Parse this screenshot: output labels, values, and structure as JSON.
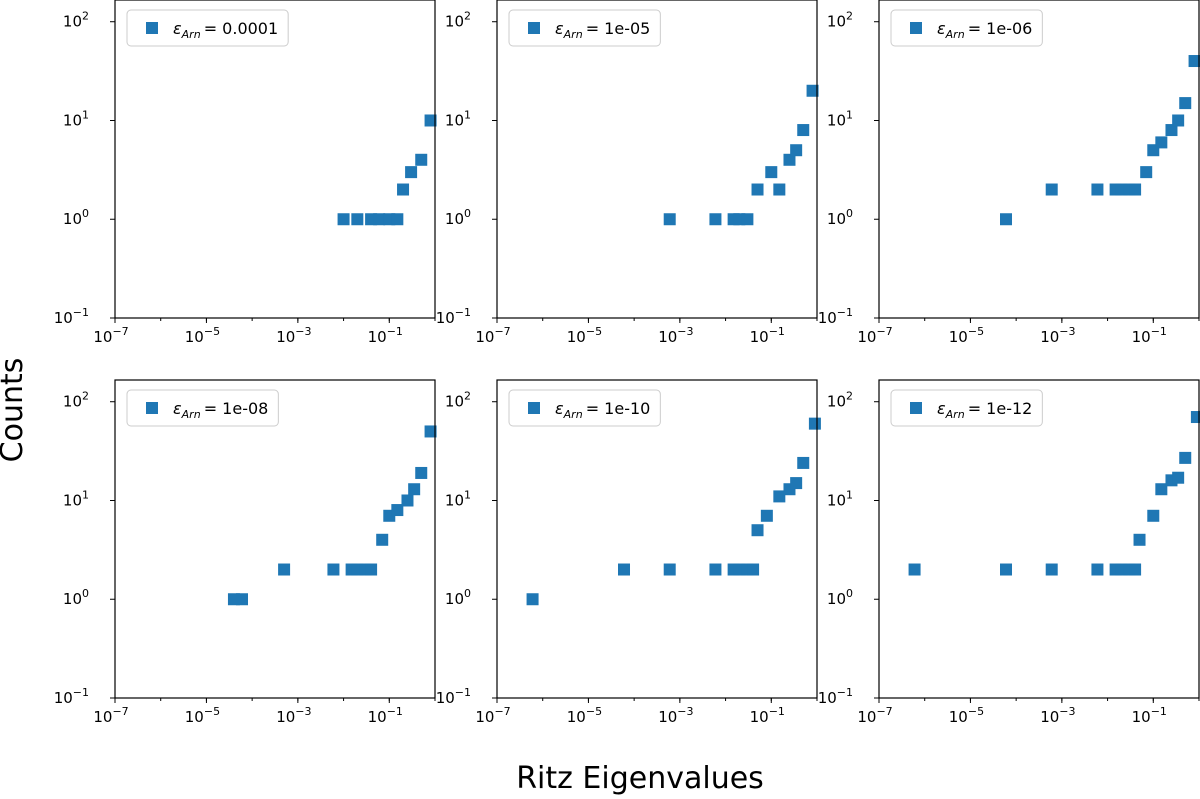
{
  "figure": {
    "ylabel": "Counts",
    "xlabel": "Ritz Eigenvalues"
  },
  "colors": {
    "marker": "#1f77b4",
    "axis": "#000000",
    "legend_border": "#cccccc"
  },
  "chart_data": [
    {
      "type": "scatter",
      "xscale": "log",
      "yscale": "log",
      "xlim": [
        1e-07,
        1
      ],
      "ylim": [
        0.1,
        100
      ],
      "xticks": [
        "10^-7",
        "10^-5",
        "10^-3",
        "10^-1"
      ],
      "yticks": [
        "10^-1",
        "10^0",
        "10^1",
        "10^2"
      ],
      "legend": {
        "symbol": "ε",
        "subscript": "Arn",
        "value": "= 0.0001",
        "location": "upper-left"
      },
      "points": [
        {
          "x": 0.01,
          "y": 1
        },
        {
          "x": 0.02,
          "y": 1
        },
        {
          "x": 0.04,
          "y": 1
        },
        {
          "x": 0.06,
          "y": 1
        },
        {
          "x": 0.1,
          "y": 1
        },
        {
          "x": 0.15,
          "y": 1
        },
        {
          "x": 0.2,
          "y": 2
        },
        {
          "x": 0.3,
          "y": 3
        },
        {
          "x": 0.5,
          "y": 4
        },
        {
          "x": 0.8,
          "y": 10
        }
      ]
    },
    {
      "type": "scatter",
      "xscale": "log",
      "yscale": "log",
      "xlim": [
        1e-07,
        1
      ],
      "ylim": [
        0.1,
        100
      ],
      "xticks": [
        "10^-7",
        "10^-5",
        "10^-3",
        "10^-1"
      ],
      "yticks": [
        "10^-1",
        "10^0",
        "10^1",
        "10^2"
      ],
      "legend": {
        "symbol": "ε",
        "subscript": "Arn",
        "value": "= 1e-05",
        "location": "upper-left"
      },
      "points": [
        {
          "x": 0.0006,
          "y": 1
        },
        {
          "x": 0.006,
          "y": 1
        },
        {
          "x": 0.015,
          "y": 1
        },
        {
          "x": 0.02,
          "y": 1
        },
        {
          "x": 0.03,
          "y": 1
        },
        {
          "x": 0.05,
          "y": 2
        },
        {
          "x": 0.1,
          "y": 3
        },
        {
          "x": 0.15,
          "y": 2
        },
        {
          "x": 0.25,
          "y": 4
        },
        {
          "x": 0.35,
          "y": 5
        },
        {
          "x": 0.5,
          "y": 8
        },
        {
          "x": 0.8,
          "y": 20
        }
      ]
    },
    {
      "type": "scatter",
      "xscale": "log",
      "yscale": "log",
      "xlim": [
        1e-07,
        1
      ],
      "ylim": [
        0.1,
        100
      ],
      "xticks": [
        "10^-7",
        "10^-5",
        "10^-3",
        "10^-1"
      ],
      "yticks": [
        "10^-1",
        "10^0",
        "10^1",
        "10^2"
      ],
      "legend": {
        "symbol": "ε",
        "subscript": "Arn",
        "value": "= 1e-06",
        "location": "upper-left"
      },
      "points": [
        {
          "x": 6e-05,
          "y": 1
        },
        {
          "x": 0.0006,
          "y": 2
        },
        {
          "x": 0.006,
          "y": 2
        },
        {
          "x": 0.015,
          "y": 2
        },
        {
          "x": 0.02,
          "y": 2
        },
        {
          "x": 0.03,
          "y": 2
        },
        {
          "x": 0.04,
          "y": 2
        },
        {
          "x": 0.07,
          "y": 3
        },
        {
          "x": 0.1,
          "y": 5
        },
        {
          "x": 0.15,
          "y": 6
        },
        {
          "x": 0.25,
          "y": 8
        },
        {
          "x": 0.35,
          "y": 10
        },
        {
          "x": 0.5,
          "y": 15
        },
        {
          "x": 0.8,
          "y": 40
        }
      ]
    },
    {
      "type": "scatter",
      "xscale": "log",
      "yscale": "log",
      "xlim": [
        1e-07,
        1
      ],
      "ylim": [
        0.1,
        100
      ],
      "xticks": [
        "10^-7",
        "10^-5",
        "10^-3",
        "10^-1"
      ],
      "yticks": [
        "10^-1",
        "10^0",
        "10^1",
        "10^2"
      ],
      "legend": {
        "symbol": "ε",
        "subscript": "Arn",
        "value": "= 1e-08",
        "location": "upper-left"
      },
      "points": [
        {
          "x": 4e-05,
          "y": 1
        },
        {
          "x": 6e-05,
          "y": 1
        },
        {
          "x": 0.0005,
          "y": 2
        },
        {
          "x": 0.006,
          "y": 2
        },
        {
          "x": 0.015,
          "y": 2
        },
        {
          "x": 0.02,
          "y": 2
        },
        {
          "x": 0.03,
          "y": 2
        },
        {
          "x": 0.04,
          "y": 2
        },
        {
          "x": 0.07,
          "y": 4
        },
        {
          "x": 0.1,
          "y": 7
        },
        {
          "x": 0.15,
          "y": 8
        },
        {
          "x": 0.25,
          "y": 10
        },
        {
          "x": 0.35,
          "y": 13
        },
        {
          "x": 0.5,
          "y": 19
        },
        {
          "x": 0.8,
          "y": 50
        }
      ]
    },
    {
      "type": "scatter",
      "xscale": "log",
      "yscale": "log",
      "xlim": [
        1e-07,
        1
      ],
      "ylim": [
        0.1,
        100
      ],
      "xticks": [
        "10^-7",
        "10^-5",
        "10^-3",
        "10^-1"
      ],
      "yticks": [
        "10^-1",
        "10^0",
        "10^1",
        "10^2"
      ],
      "legend": {
        "symbol": "ε",
        "subscript": "Arn",
        "value": "= 1e-10",
        "location": "upper-left"
      },
      "points": [
        {
          "x": 6e-07,
          "y": 1
        },
        {
          "x": 6e-05,
          "y": 2
        },
        {
          "x": 0.0006,
          "y": 2
        },
        {
          "x": 0.006,
          "y": 2
        },
        {
          "x": 0.015,
          "y": 2
        },
        {
          "x": 0.02,
          "y": 2
        },
        {
          "x": 0.03,
          "y": 2
        },
        {
          "x": 0.04,
          "y": 2
        },
        {
          "x": 0.05,
          "y": 5
        },
        {
          "x": 0.08,
          "y": 7
        },
        {
          "x": 0.15,
          "y": 11
        },
        {
          "x": 0.25,
          "y": 13
        },
        {
          "x": 0.35,
          "y": 15
        },
        {
          "x": 0.5,
          "y": 24
        },
        {
          "x": 0.9,
          "y": 60
        }
      ]
    },
    {
      "type": "scatter",
      "xscale": "log",
      "yscale": "log",
      "xlim": [
        1e-07,
        1
      ],
      "ylim": [
        0.1,
        100
      ],
      "xticks": [
        "10^-7",
        "10^-5",
        "10^-3",
        "10^-1"
      ],
      "yticks": [
        "10^-1",
        "10^0",
        "10^1",
        "10^2"
      ],
      "legend": {
        "symbol": "ε",
        "subscript": "Arn",
        "value": "= 1e-12",
        "location": "upper-left"
      },
      "points": [
        {
          "x": 6e-07,
          "y": 2
        },
        {
          "x": 6e-05,
          "y": 2
        },
        {
          "x": 0.0006,
          "y": 2
        },
        {
          "x": 0.006,
          "y": 2
        },
        {
          "x": 0.015,
          "y": 2
        },
        {
          "x": 0.02,
          "y": 2
        },
        {
          "x": 0.03,
          "y": 2
        },
        {
          "x": 0.04,
          "y": 2
        },
        {
          "x": 0.05,
          "y": 4
        },
        {
          "x": 0.1,
          "y": 7
        },
        {
          "x": 0.15,
          "y": 13
        },
        {
          "x": 0.25,
          "y": 16
        },
        {
          "x": 0.35,
          "y": 17
        },
        {
          "x": 0.5,
          "y": 27
        },
        {
          "x": 0.9,
          "y": 70
        }
      ]
    }
  ]
}
